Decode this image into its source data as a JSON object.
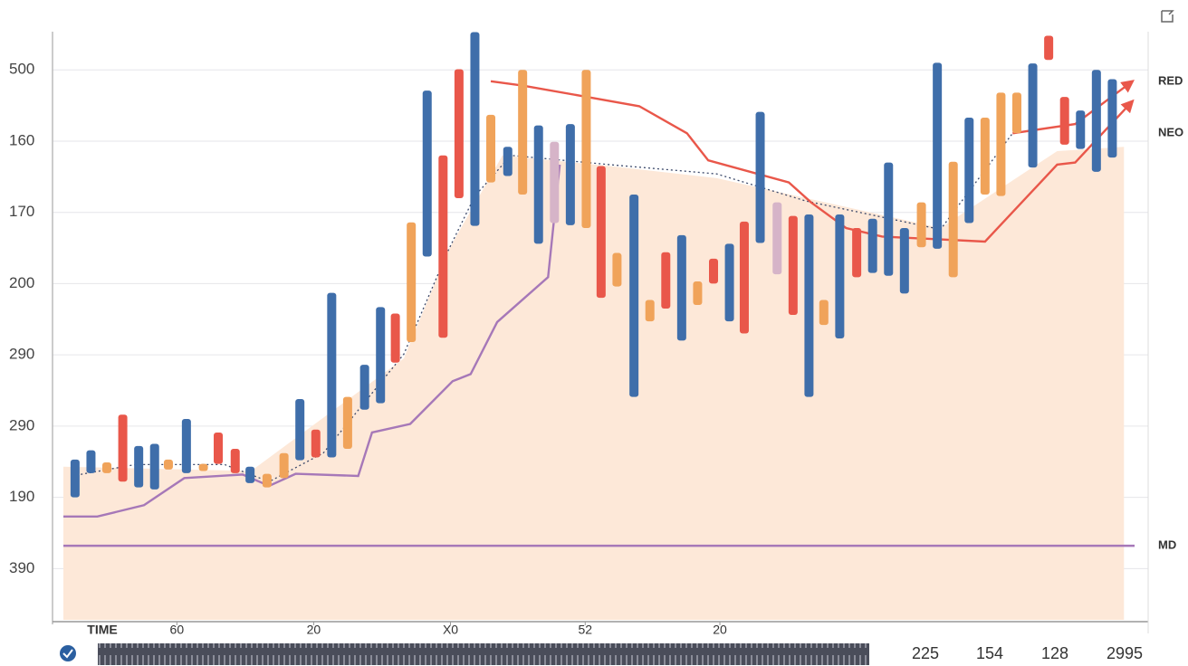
{
  "chart_data": {
    "type": "range-bar",
    "x_label": "TIME",
    "xlim": [
      0,
      101
    ],
    "xticks": [
      {
        "value": 10.7,
        "label": "60"
      },
      {
        "value": 23.6,
        "label": "20"
      },
      {
        "value": 36.5,
        "label": "X0"
      },
      {
        "value": 49.2,
        "label": "52"
      },
      {
        "value": 61.9,
        "label": "20"
      }
    ],
    "ylim": [
      -0.72,
      7.6
    ],
    "yticks": [
      {
        "value": 7,
        "label": "500"
      },
      {
        "value": 6,
        "label": "160"
      },
      {
        "value": 5,
        "label": "170"
      },
      {
        "value": 4,
        "label": "200"
      },
      {
        "value": 3,
        "label": "290"
      },
      {
        "value": 2,
        "label": "290"
      },
      {
        "value": 1,
        "label": "190"
      },
      {
        "value": 0,
        "label": "390"
      }
    ],
    "grid": true,
    "area": {
      "color": "#fde8d8",
      "x": [
        0,
        17.7,
        32.1,
        36.3,
        41.4,
        51.5,
        61.6,
        82.7,
        93.7,
        100
      ],
      "values": [
        1.43,
        1.37,
        2.95,
        4.47,
        5.8,
        5.65,
        5.48,
        4.78,
        5.86,
        5.92
      ]
    },
    "bars": [
      {
        "color": "#3f6eaa",
        "x": [
          1.1,
          2.6,
          7.1,
          8.6,
          11.6,
          17.6,
          22.3,
          25.3,
          28.4,
          29.9,
          34.3,
          38.8,
          41.9,
          44.8,
          47.8,
          53.8,
          58.3,
          62.8,
          65.7,
          70.3,
          73.2,
          76.3,
          77.8,
          79.3,
          82.4,
          85.4,
          91.4,
          95.9,
          97.4,
          98.9
        ],
        "high": [
          1.53,
          1.66,
          1.72,
          1.75,
          2.1,
          1.43,
          2.38,
          3.87,
          2.86,
          3.67,
          6.71,
          7.53,
          5.92,
          6.22,
          6.24,
          5.25,
          4.68,
          4.56,
          6.41,
          4.97,
          4.97,
          4.91,
          5.7,
          4.78,
          7.1,
          6.33,
          7.09,
          6.43,
          7.0,
          6.87
        ],
        "low": [
          1.0,
          1.34,
          1.14,
          1.11,
          1.34,
          1.2,
          1.52,
          1.56,
          2.23,
          2.32,
          4.38,
          4.81,
          5.51,
          4.56,
          4.82,
          2.41,
          3.2,
          3.47,
          4.57,
          2.41,
          3.23,
          4.15,
          4.11,
          3.86,
          4.49,
          4.85,
          5.63,
          5.89,
          5.57,
          5.77
        ]
      },
      {
        "color": "#e9574a",
        "x": [
          5.6,
          14.6,
          16.2,
          23.8,
          31.3,
          35.8,
          37.3,
          50.7,
          56.8,
          61.3,
          64.2,
          68.8,
          74.8,
          92.9,
          94.4
        ],
        "high": [
          2.16,
          1.91,
          1.68,
          1.95,
          3.58,
          5.8,
          7.01,
          5.65,
          4.44,
          4.35,
          4.87,
          4.95,
          4.78,
          7.48,
          6.62
        ],
        "low": [
          1.22,
          1.47,
          1.34,
          1.56,
          2.89,
          3.24,
          5.2,
          3.8,
          3.65,
          4.0,
          3.3,
          3.56,
          4.09,
          7.14,
          5.95
        ]
      },
      {
        "color": "#f0a35a",
        "x": [
          4.1,
          9.9,
          13.2,
          19.2,
          20.8,
          26.8,
          32.8,
          40.3,
          43.3,
          49.3,
          52.2,
          55.3,
          59.8,
          71.7,
          80.9,
          83.9,
          86.9,
          88.4,
          89.9
        ],
        "high": [
          1.49,
          1.53,
          1.47,
          1.33,
          1.62,
          2.41,
          4.86,
          6.37,
          7.0,
          7.0,
          4.43,
          3.77,
          4.03,
          3.77,
          5.14,
          5.71,
          6.33,
          6.68,
          6.68
        ],
        "low": [
          1.34,
          1.39,
          1.37,
          1.14,
          1.27,
          1.68,
          3.18,
          5.42,
          5.25,
          4.78,
          3.96,
          3.47,
          3.7,
          3.42,
          4.51,
          4.09,
          5.25,
          5.23,
          6.11
        ]
      },
      {
        "color": "#d6b4c8",
        "x": [
          46.3,
          67.3
        ],
        "high": [
          5.99,
          5.14
        ],
        "low": [
          4.85,
          4.13
        ]
      }
    ],
    "series": [
      {
        "color": "#a678b8",
        "x": [
          0,
          3.2,
          7.6,
          11.4,
          16.9,
          19.4,
          21.9,
          27.8,
          29.1,
          32.7,
          36.7,
          38.4,
          40.9,
          45.7,
          46.8
        ],
        "values": [
          0.73,
          0.73,
          0.89,
          1.27,
          1.32,
          1.16,
          1.33,
          1.3,
          1.91,
          2.03,
          2.63,
          2.73,
          3.46,
          4.09,
          5.67
        ]
      },
      {
        "name": "NEO",
        "color": "#3d4a6b",
        "dashed": true,
        "x": [
          0.8,
          6.8,
          15.2,
          19.4,
          24.5,
          32.1,
          36.3,
          38.8,
          42.2,
          51.5,
          61.6,
          70.0,
          82.7,
          89.5
        ],
        "values": [
          1.3,
          1.46,
          1.46,
          1.22,
          1.62,
          3.01,
          4.47,
          5.23,
          5.8,
          5.67,
          5.54,
          5.16,
          4.76,
          6.11
        ]
      },
      {
        "color": "#e9574a",
        "arrow": true,
        "x": [
          40.3,
          43.3,
          49.4,
          54.3,
          58.8,
          60.8,
          68.4,
          70.5,
          73.8,
          77.2,
          86.9,
          93.7,
          95.4,
          100.8
        ],
        "values": [
          6.84,
          6.78,
          6.62,
          6.49,
          6.11,
          5.73,
          5.42,
          5.14,
          4.78,
          4.66,
          4.59,
          5.67,
          5.7,
          6.56
        ]
      },
      {
        "name": "RED",
        "color": "#e9574a",
        "arrow": true,
        "x": [
          89.5,
          95.4,
          100.8
        ],
        "values": [
          6.11,
          6.24,
          6.84
        ]
      },
      {
        "name": "MD",
        "color": "#a678b8",
        "x": [
          0,
          101
        ],
        "values": [
          0.32,
          0.32
        ]
      }
    ],
    "footer_labels": [
      "225",
      "154",
      "128",
      "2995"
    ]
  }
}
